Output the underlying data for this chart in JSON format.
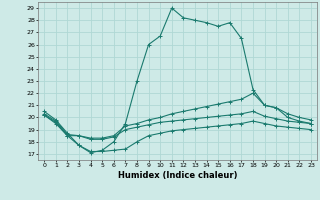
{
  "xlabel": "Humidex (Indice chaleur)",
  "xlim": [
    -0.5,
    23.5
  ],
  "ylim": [
    16.5,
    29.5
  ],
  "xticks": [
    0,
    1,
    2,
    3,
    4,
    5,
    6,
    7,
    8,
    9,
    10,
    11,
    12,
    13,
    14,
    15,
    16,
    17,
    18,
    19,
    20,
    21,
    22,
    23
  ],
  "yticks": [
    17,
    18,
    19,
    20,
    21,
    22,
    23,
    24,
    25,
    26,
    27,
    28,
    29
  ],
  "background_color": "#ceeae7",
  "grid_color": "#b0d8d4",
  "line_color": "#1a7a6e",
  "series": [
    {
      "x": [
        0,
        1,
        2,
        3,
        4,
        5,
        6,
        7,
        8,
        9,
        10,
        11,
        12,
        13,
        14,
        15,
        16,
        17,
        18,
        19,
        20,
        21,
        22,
        23
      ],
      "y": [
        20.5,
        19.8,
        18.7,
        17.7,
        17.1,
        17.3,
        18.0,
        19.5,
        23.0,
        26.0,
        26.7,
        29.0,
        28.2,
        28.0,
        27.8,
        27.5,
        27.8,
        26.5,
        22.3,
        21.0,
        20.8,
        20.0,
        19.7,
        19.5
      ]
    },
    {
      "x": [
        0,
        1,
        2,
        3,
        4,
        5,
        6,
        7,
        8,
        9,
        10,
        11,
        12,
        13,
        14,
        15,
        16,
        17,
        18,
        19,
        20,
        21,
        22,
        23
      ],
      "y": [
        20.3,
        19.7,
        18.6,
        18.5,
        18.3,
        18.3,
        18.5,
        19.3,
        19.5,
        19.8,
        20.0,
        20.3,
        20.5,
        20.7,
        20.9,
        21.1,
        21.3,
        21.5,
        22.0,
        21.0,
        20.8,
        20.3,
        20.0,
        19.8
      ]
    },
    {
      "x": [
        0,
        1,
        2,
        3,
        4,
        5,
        6,
        7,
        8,
        9,
        10,
        11,
        12,
        13,
        14,
        15,
        16,
        17,
        18,
        19,
        20,
        21,
        22,
        23
      ],
      "y": [
        20.2,
        19.6,
        18.5,
        18.5,
        18.2,
        18.2,
        18.4,
        19.0,
        19.2,
        19.4,
        19.6,
        19.7,
        19.8,
        19.9,
        20.0,
        20.1,
        20.2,
        20.3,
        20.5,
        20.1,
        19.9,
        19.7,
        19.6,
        19.5
      ]
    },
    {
      "x": [
        0,
        1,
        2,
        3,
        4,
        5,
        6,
        7,
        8,
        9,
        10,
        11,
        12,
        13,
        14,
        15,
        16,
        17,
        18,
        19,
        20,
        21,
        22,
        23
      ],
      "y": [
        20.2,
        19.5,
        18.5,
        17.7,
        17.2,
        17.2,
        17.3,
        17.4,
        18.0,
        18.5,
        18.7,
        18.9,
        19.0,
        19.1,
        19.2,
        19.3,
        19.4,
        19.5,
        19.7,
        19.5,
        19.3,
        19.2,
        19.1,
        19.0
      ]
    }
  ]
}
